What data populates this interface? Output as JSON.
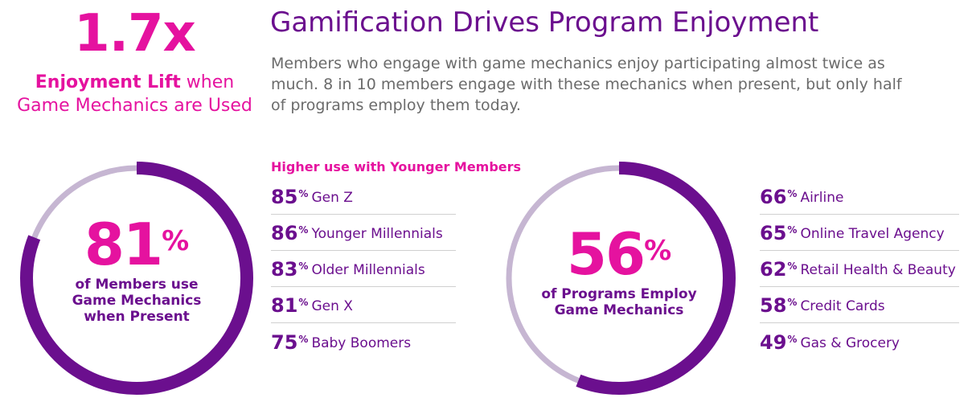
{
  "colors": {
    "magenta": "#e5129f",
    "purple": "#6b0f8e",
    "ring_light": "#c6b6d2",
    "gray_text": "#6b6b6b"
  },
  "lift": {
    "value": "1.7x",
    "label_bold": "Enjoyment Lift",
    "label_rest_1": " when",
    "label_line2": "Game Mechanics are Used"
  },
  "headline": "Gamification Drives Program Enjoyment",
  "intro": "Members who engage with game mechanics enjoy participating almost twice as much. 8 in 10 members engage with these mechanics when present, but only half of programs employ them today.",
  "members_ring": {
    "value": "81",
    "suffix": "%",
    "fraction": 0.81,
    "caption_1": "of Members use",
    "caption_2": "Game Mechanics",
    "caption_3": "when Present"
  },
  "younger": {
    "heading": "Higher use with Younger Members",
    "items": [
      {
        "pct": "85",
        "label": "Gen Z"
      },
      {
        "pct": "86",
        "label": "Younger Millennials"
      },
      {
        "pct": "83",
        "label": "Older Millennials"
      },
      {
        "pct": "81",
        "label": "Gen X"
      },
      {
        "pct": "75",
        "label": "Baby Boomers"
      }
    ]
  },
  "programs_ring": {
    "value": "56",
    "suffix": "%",
    "fraction": 0.56,
    "caption_1": "of Programs Employ",
    "caption_2": "Game Mechanics"
  },
  "industries": {
    "items": [
      {
        "pct": "66",
        "label": "Airline"
      },
      {
        "pct": "65",
        "label": "Online Travel Agency"
      },
      {
        "pct": "62",
        "label": "Retail Health & Beauty"
      },
      {
        "pct": "58",
        "label": "Credit Cards"
      },
      {
        "pct": "49",
        "label": "Gas & Grocery"
      }
    ]
  },
  "pct_symbol": "%"
}
